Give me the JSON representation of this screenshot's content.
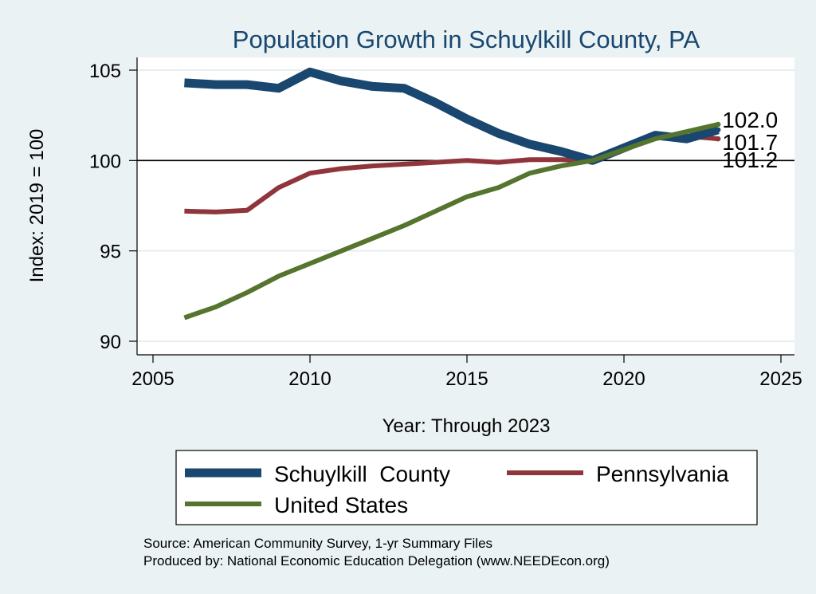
{
  "chart_data": {
    "type": "line",
    "title": "Population Growth in Schuylkill County, PA",
    "xlabel": "Year: Through 2023",
    "ylabel": "Index: 2019 = 100",
    "xlim": [
      2005,
      2025
    ],
    "ylim": [
      89.5,
      105.5
    ],
    "x_ticks": [
      2005,
      2010,
      2015,
      2020,
      2025
    ],
    "y_ticks": [
      90,
      95,
      100,
      105
    ],
    "reference_line": 100,
    "grid": true,
    "x": [
      2006,
      2007,
      2008,
      2009,
      2010,
      2011,
      2012,
      2013,
      2014,
      2015,
      2016,
      2017,
      2018,
      2019,
      2020,
      2021,
      2022,
      2023
    ],
    "series": [
      {
        "name": "Schuylkill  County",
        "color": "#1a476f",
        "values": [
          104.3,
          104.2,
          104.2,
          104.0,
          104.9,
          104.4,
          104.1,
          104.0,
          103.2,
          102.3,
          101.5,
          100.9,
          100.5,
          100.0,
          100.7,
          101.4,
          101.2,
          101.7
        ],
        "end_label": "101.7"
      },
      {
        "name": "Pennsylvania",
        "color": "#90353b",
        "values": [
          97.2,
          97.15,
          97.25,
          98.5,
          99.3,
          99.55,
          99.7,
          99.8,
          99.9,
          100.0,
          99.9,
          100.05,
          100.05,
          100.0,
          100.6,
          101.3,
          101.35,
          101.2
        ],
        "end_label": "101.2"
      },
      {
        "name": "United States",
        "color": "#55752f",
        "values": [
          91.3,
          91.9,
          92.7,
          93.6,
          94.3,
          95.0,
          95.7,
          96.4,
          97.2,
          98.0,
          98.5,
          99.3,
          99.7,
          100.0,
          100.6,
          101.2,
          101.6,
          102.0
        ],
        "end_label": "102.0"
      }
    ],
    "legend": {
      "placement": "bottom",
      "items": [
        "Schuylkill  County",
        "Pennsylvania",
        "United States"
      ]
    }
  },
  "source_note": "Source: American Community Survey, 1-yr Summary Files",
  "produced_by": "Produced by: National Economic Education Delegation (www.NEEDEcon.org)"
}
